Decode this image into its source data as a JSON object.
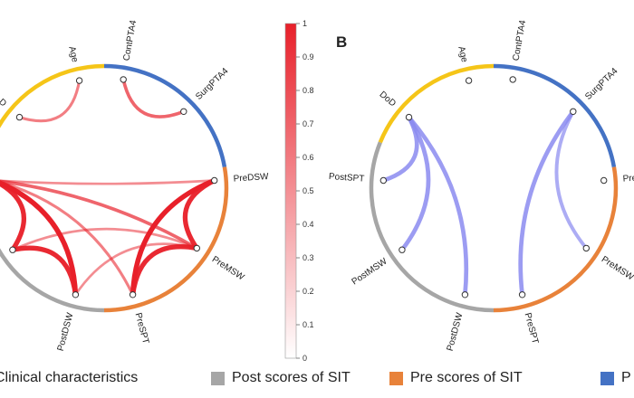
{
  "panel_b_label": "B",
  "colorbar": {
    "ticks": [
      "0",
      "0.1",
      "0.2",
      "0.3",
      "0.4",
      "0.5",
      "0.6",
      "0.7",
      "0.8",
      "0.9",
      "1"
    ]
  },
  "colors": {
    "clinical": "#F5C518",
    "post_sit": "#A6A6A6",
    "pre_sit": "#E8823A",
    "pta": "#4472C4",
    "positive_link": "#E8202A",
    "negative_link": "#8C8CF0"
  },
  "panel_a": {
    "nodes": [
      {
        "id": "Age",
        "label": "Age"
      },
      {
        "id": "ContPTA4",
        "label": "ContPTA4"
      },
      {
        "id": "SurgPTA4",
        "label": "SurgPTA4"
      },
      {
        "id": "PreDSW",
        "label": "PreDSW"
      },
      {
        "id": "PreMSW",
        "label": "PreMSW"
      },
      {
        "id": "PreSPT",
        "label": "PreSPT"
      },
      {
        "id": "PostDSW",
        "label": "PostDSW"
      },
      {
        "id": "DoD",
        "label": "D"
      },
      {
        "id": "PostSPT",
        "label": ""
      },
      {
        "id": "PostMSW",
        "label": ""
      }
    ],
    "links": [
      {
        "from": "Age",
        "to": "DoD",
        "weight": 0.4
      },
      {
        "from": "ContPTA4",
        "to": "SurgPTA4",
        "weight": 0.55
      },
      {
        "from": "PostSPT",
        "to": "PostMSW",
        "weight": 0.95
      },
      {
        "from": "PostSPT",
        "to": "PostDSW",
        "weight": 1.0
      },
      {
        "from": "PostMSW",
        "to": "PostDSW",
        "weight": 0.95
      },
      {
        "from": "PreDSW",
        "to": "PreMSW",
        "weight": 0.95
      },
      {
        "from": "PreDSW",
        "to": "PreSPT",
        "weight": 1.0
      },
      {
        "from": "PreMSW",
        "to": "PreSPT",
        "weight": 0.95
      },
      {
        "from": "PostSPT",
        "to": "PreMSW",
        "weight": 0.55
      },
      {
        "from": "PostSPT",
        "to": "PreSPT",
        "weight": 0.4
      },
      {
        "from": "PostSPT",
        "to": "PreDSW",
        "weight": 0.3
      },
      {
        "from": "PostMSW",
        "to": "PreMSW",
        "weight": 0.3
      },
      {
        "from": "PostDSW",
        "to": "PreMSW",
        "weight": 0.3
      }
    ]
  },
  "panel_b": {
    "nodes": [
      {
        "id": "Age",
        "label": "Age"
      },
      {
        "id": "ContPTA4",
        "label": "ContPTA4"
      },
      {
        "id": "SurgPTA4",
        "label": "SurgPTA4"
      },
      {
        "id": "PreDSW",
        "label": "Pre"
      },
      {
        "id": "PreMSW",
        "label": "PreMSW"
      },
      {
        "id": "PreSPT",
        "label": "PreSPT"
      },
      {
        "id": "PostDSW",
        "label": "PostDSW"
      },
      {
        "id": "PostMSW",
        "label": "PostMSW"
      },
      {
        "id": "PostSPT",
        "label": "PostSPT"
      },
      {
        "id": "DoD",
        "label": "DoD"
      }
    ],
    "links": [
      {
        "from": "DoD",
        "to": "PostSPT",
        "weight": 0.8
      },
      {
        "from": "DoD",
        "to": "PostMSW",
        "weight": 0.8
      },
      {
        "from": "DoD",
        "to": "PostDSW",
        "weight": 0.8
      },
      {
        "from": "SurgPTA4",
        "to": "PreSPT",
        "weight": 0.8
      },
      {
        "from": "SurgPTA4",
        "to": "PreMSW",
        "weight": 0.6
      }
    ]
  },
  "legend": [
    {
      "label": "Clinical characteristics",
      "color": "#F5C518"
    },
    {
      "label": "Post scores of SIT",
      "color": "#A6A6A6"
    },
    {
      "label": "Pre scores of SIT",
      "color": "#E8823A"
    },
    {
      "label": "P",
      "color": "#4472C4"
    }
  ]
}
